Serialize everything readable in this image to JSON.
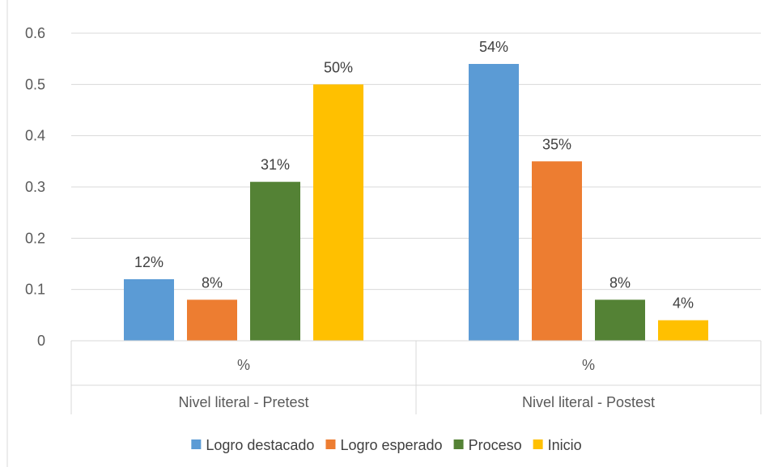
{
  "chart_data": {
    "type": "bar",
    "categories": [
      "Nivel literal - Pretest",
      "Nivel literal - Postest"
    ],
    "subcategories": [
      "%",
      "%"
    ],
    "series": [
      {
        "name": "Logro destacado",
        "color": "#5B9BD5",
        "values": [
          0.12,
          0.54
        ],
        "labels": [
          "12%",
          "54%"
        ]
      },
      {
        "name": "Logro esperado",
        "color": "#ED7D31",
        "values": [
          0.08,
          0.35
        ],
        "labels": [
          "8%",
          "35%"
        ]
      },
      {
        "name": "Proceso",
        "color": "#548235",
        "values": [
          0.31,
          0.08
        ],
        "labels": [
          "31%",
          "8%"
        ]
      },
      {
        "name": "Inicio",
        "color": "#FFC000",
        "values": [
          0.5,
          0.04
        ],
        "labels": [
          "50%",
          "4%"
        ]
      }
    ],
    "ylim": [
      0,
      0.6
    ],
    "yticks": [
      "0",
      "0.1",
      "0.2",
      "0.3",
      "0.4",
      "0.5",
      "0.6"
    ],
    "ytick_values": [
      0,
      0.1,
      0.2,
      0.3,
      0.4,
      0.5,
      0.6
    ],
    "grid": true,
    "legend": "bottom"
  }
}
